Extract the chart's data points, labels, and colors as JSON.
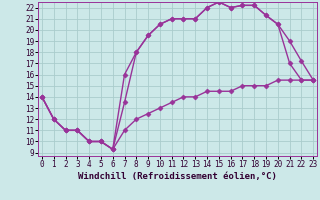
{
  "xlabel": "Windchill (Refroidissement éolien,°C)",
  "bg_color": "#cce8e8",
  "grid_color": "#aacccc",
  "line_color": "#993399",
  "line1_x": [
    0,
    1,
    2,
    3,
    4,
    5,
    6,
    7,
    8,
    9,
    10,
    11,
    12,
    13,
    14,
    15,
    16,
    17,
    18,
    19,
    20,
    21,
    22,
    23
  ],
  "line1_y": [
    14,
    12,
    11,
    11,
    10,
    10,
    9.3,
    13.5,
    18,
    19.5,
    20.5,
    21,
    21,
    21,
    22,
    22.5,
    22,
    22.2,
    22.2,
    21.3,
    20.5,
    19,
    17.2,
    15.5
  ],
  "line2_x": [
    0,
    1,
    2,
    3,
    4,
    5,
    6,
    7,
    8,
    9,
    10,
    11,
    12,
    13,
    14,
    15,
    16,
    17,
    18,
    19,
    20,
    21,
    22,
    23
  ],
  "line2_y": [
    14,
    12,
    11,
    11,
    10,
    10,
    9.3,
    16,
    18,
    19.5,
    20.5,
    21,
    21,
    21,
    22,
    22.5,
    22,
    22.2,
    22.2,
    21.3,
    20.5,
    17.0,
    15.5,
    15.5
  ],
  "line3_x": [
    0,
    1,
    2,
    3,
    4,
    5,
    6,
    7,
    8,
    9,
    10,
    11,
    12,
    13,
    14,
    15,
    16,
    17,
    18,
    19,
    20,
    21,
    22,
    23
  ],
  "line3_y": [
    14,
    12,
    11,
    11,
    10,
    10,
    9.3,
    11,
    12,
    12.5,
    13,
    13.5,
    14,
    14,
    14.5,
    14.5,
    14.5,
    15,
    15,
    15,
    15.5,
    15.5,
    15.5,
    15.5
  ],
  "xlim": [
    0,
    23
  ],
  "ylim": [
    9,
    22.5
  ],
  "yticks": [
    9,
    10,
    11,
    12,
    13,
    14,
    15,
    16,
    17,
    18,
    19,
    20,
    21,
    22
  ],
  "xticks": [
    0,
    1,
    2,
    3,
    4,
    5,
    6,
    7,
    8,
    9,
    10,
    11,
    12,
    13,
    14,
    15,
    16,
    17,
    18,
    19,
    20,
    21,
    22,
    23
  ],
  "marker": "D",
  "marker_size": 2.5,
  "line_width": 1.0,
  "tick_label_size": 5.5,
  "xlabel_size": 6.5
}
